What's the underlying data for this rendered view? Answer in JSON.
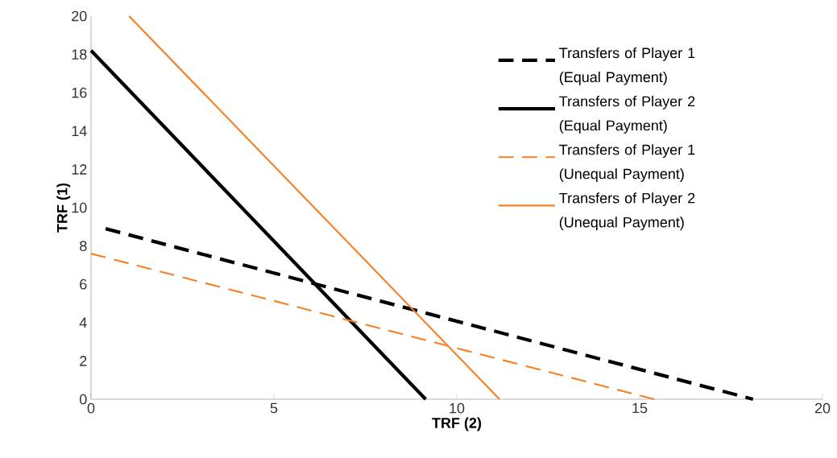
{
  "chart_data": {
    "type": "line",
    "xlabel": "TRF (2)",
    "ylabel": "TRF (1)",
    "xlim": [
      0,
      20
    ],
    "ylim": [
      0,
      20
    ],
    "xticks": [
      0,
      5,
      10,
      15,
      20
    ],
    "yticks": [
      0,
      2,
      4,
      6,
      8,
      10,
      12,
      14,
      16,
      18,
      20
    ],
    "grid": false,
    "legend": "top right",
    "marker": "none",
    "series": [
      {
        "name": "Transfers of Player 1 (Equal Payment)",
        "color": "#000000",
        "line_style": "dashed",
        "x": [
          0.4,
          18.1
        ],
        "values": [
          8.9,
          0
        ]
      },
      {
        "name": "Transfers of Player 2 (Equal Payment)",
        "color": "#000000",
        "line_style": "solid",
        "x": [
          0,
          9.15
        ],
        "values": [
          18.2,
          0
        ]
      },
      {
        "name": "Transfers of Player 1 (Unequal Payment)",
        "color": "#f58025",
        "line_style": "dashed",
        "x": [
          0,
          15.4
        ],
        "values": [
          7.6,
          0
        ]
      },
      {
        "name": "Transfers of Player 2 (Unequal Payment)",
        "color": "#f58025",
        "line_style": "solid",
        "x": [
          1.04,
          11.17
        ],
        "values": [
          20,
          0
        ]
      }
    ]
  }
}
